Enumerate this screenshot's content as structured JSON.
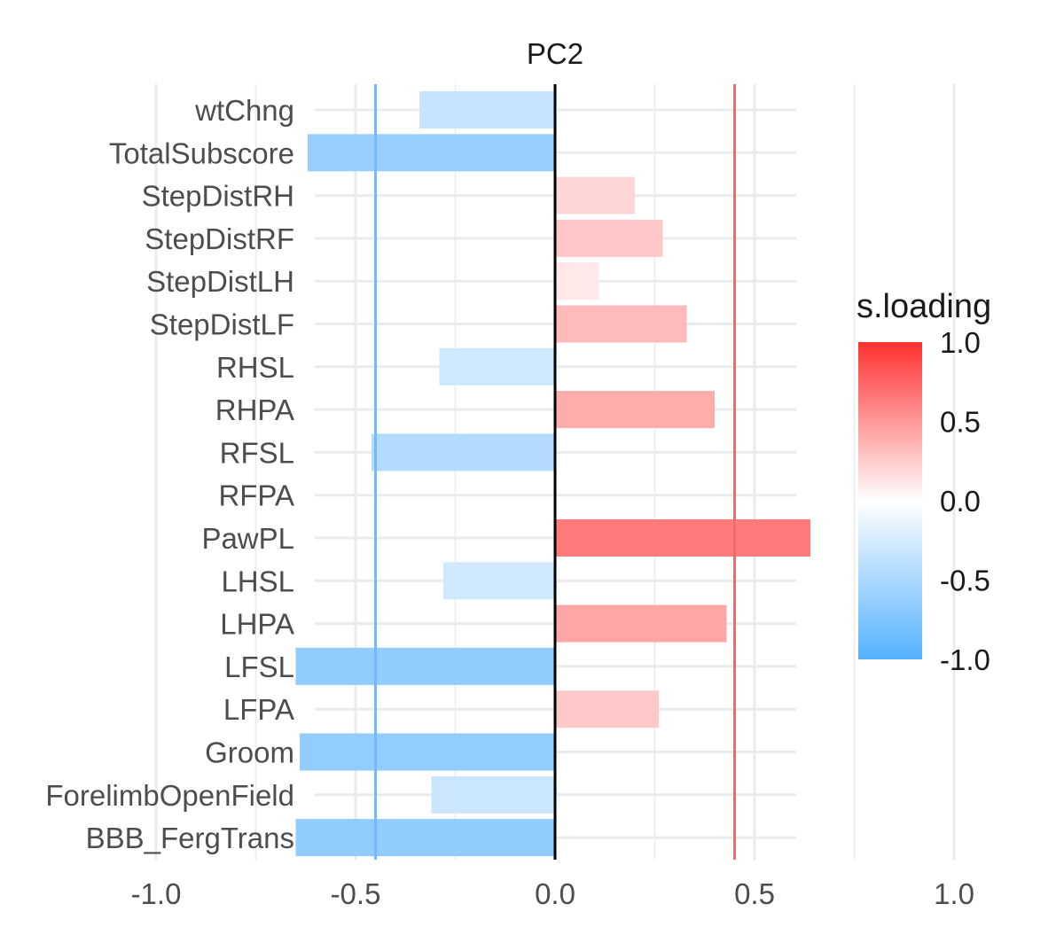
{
  "chart_data": {
    "type": "bar",
    "orientation": "horizontal",
    "title": "PC2",
    "xlabel": "",
    "ylabel": "",
    "xlim": [
      -1.2,
      1.2
    ],
    "x_ticks": [
      -1.0,
      -0.5,
      0.0,
      0.5,
      1.0
    ],
    "x_tick_labels": [
      "-1.0",
      "-0.5",
      "0.0",
      "0.5",
      "1.0"
    ],
    "grid": true,
    "categories": [
      "wtChng",
      "TotalSubscore",
      "StepDistRH",
      "StepDistRF",
      "StepDistLH",
      "StepDistLF",
      "RHSL",
      "RHPA",
      "RFSL",
      "RFPA",
      "PawPL",
      "LHSL",
      "LHPA",
      "LFSL",
      "LFPA",
      "Groom",
      "ForelimbOpenField",
      "BBB_FergTrans"
    ],
    "values": [
      -0.34,
      -0.62,
      0.2,
      0.27,
      0.11,
      0.33,
      -0.29,
      0.4,
      -0.46,
      0.0,
      0.64,
      -0.28,
      0.43,
      -0.65,
      0.26,
      -0.64,
      -0.31,
      -0.65
    ],
    "reference_lines": [
      {
        "value": -0.45,
        "color": "#74b9ff"
      },
      {
        "value": 0.45,
        "color": "#f06a6a"
      }
    ],
    "color_scale": {
      "low": "#56b1ff",
      "mid": "#ffffff",
      "high": "#ff3030",
      "limits": [
        -1.0,
        1.0
      ]
    },
    "legend": {
      "title": "s.loading",
      "position": "right",
      "labels": [
        "1.0",
        "0.5",
        "0.0",
        "-0.5",
        "-1.0"
      ],
      "values": [
        1.0,
        0.5,
        0.0,
        -0.5,
        -1.0
      ]
    }
  }
}
